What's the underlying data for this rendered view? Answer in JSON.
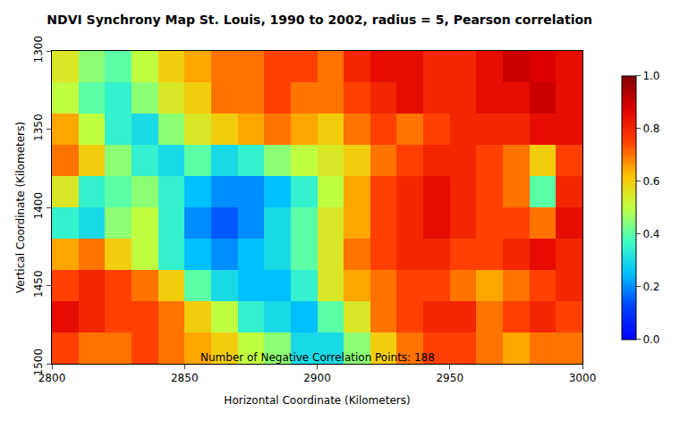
{
  "chart_data": {
    "type": "heatmap",
    "title": "NDVI Synchrony Map St. Louis, 1990 to 2002, radius = 5, Pearson correlation",
    "x_label": "Horizontal Coordinate (Kilometers)",
    "y_label": "Vertical Coordinate (Kilometers)",
    "x": [
      2805,
      2815,
      2825,
      2835,
      2845,
      2855,
      2865,
      2875,
      2885,
      2895,
      2905,
      2915,
      2925,
      2935,
      2945,
      2955,
      2965,
      2975,
      2985,
      2995
    ],
    "y": [
      1310,
      1330,
      1350,
      1370,
      1390,
      1410,
      1430,
      1450,
      1470,
      1490
    ],
    "z": [
      [
        0.55,
        0.45,
        0.4,
        0.5,
        0.6,
        0.65,
        0.7,
        0.7,
        0.75,
        0.75,
        0.7,
        0.8,
        0.85,
        0.85,
        0.8,
        0.8,
        0.85,
        0.9,
        0.88,
        0.85
      ],
      [
        0.5,
        0.4,
        0.35,
        0.45,
        0.55,
        0.6,
        0.7,
        0.7,
        0.75,
        0.7,
        0.7,
        0.75,
        0.8,
        0.85,
        0.8,
        0.8,
        0.85,
        0.85,
        0.9,
        0.85
      ],
      [
        0.65,
        0.5,
        0.35,
        0.3,
        0.45,
        0.55,
        0.6,
        0.65,
        0.7,
        0.65,
        0.6,
        0.7,
        0.75,
        0.7,
        0.75,
        0.8,
        0.8,
        0.8,
        0.85,
        0.85
      ],
      [
        0.7,
        0.6,
        0.45,
        0.35,
        0.3,
        0.4,
        0.3,
        0.35,
        0.45,
        0.5,
        0.55,
        0.6,
        0.7,
        0.75,
        0.8,
        0.8,
        0.75,
        0.7,
        0.6,
        0.75
      ],
      [
        0.55,
        0.35,
        0.4,
        0.45,
        0.35,
        0.25,
        0.2,
        0.2,
        0.25,
        0.35,
        0.5,
        0.65,
        0.75,
        0.8,
        0.85,
        0.8,
        0.75,
        0.7,
        0.4,
        0.8
      ],
      [
        0.35,
        0.3,
        0.45,
        0.5,
        0.35,
        0.2,
        0.15,
        0.2,
        0.3,
        0.4,
        0.55,
        0.65,
        0.75,
        0.8,
        0.85,
        0.8,
        0.75,
        0.75,
        0.7,
        0.85
      ],
      [
        0.65,
        0.7,
        0.6,
        0.5,
        0.35,
        0.25,
        0.2,
        0.25,
        0.3,
        0.4,
        0.55,
        0.7,
        0.75,
        0.8,
        0.8,
        0.75,
        0.75,
        0.8,
        0.85,
        0.8
      ],
      [
        0.75,
        0.8,
        0.75,
        0.7,
        0.6,
        0.4,
        0.3,
        0.25,
        0.25,
        0.35,
        0.55,
        0.65,
        0.7,
        0.75,
        0.75,
        0.7,
        0.65,
        0.7,
        0.75,
        0.8
      ],
      [
        0.85,
        0.8,
        0.75,
        0.75,
        0.7,
        0.6,
        0.5,
        0.35,
        0.3,
        0.25,
        0.4,
        0.55,
        0.7,
        0.75,
        0.8,
        0.8,
        0.7,
        0.75,
        0.8,
        0.75
      ],
      [
        0.75,
        0.7,
        0.7,
        0.75,
        0.7,
        0.65,
        0.6,
        0.5,
        0.45,
        0.3,
        0.3,
        0.45,
        0.6,
        0.7,
        0.75,
        0.75,
        0.7,
        0.65,
        0.7,
        0.7
      ]
    ],
    "xlim": [
      2800,
      3000
    ],
    "ylim": [
      1500,
      1300
    ],
    "xticks": [
      2800,
      2850,
      2900,
      2950,
      3000
    ],
    "yticks": [
      1300,
      1350,
      1400,
      1450,
      1500
    ],
    "colorbar_range": [
      0,
      1
    ],
    "colorbar_ticks": [
      {
        "value": 0,
        "label": "0.0"
      },
      {
        "value": 0.2,
        "label": "0.2"
      },
      {
        "value": 0.4,
        "label": "0.4"
      },
      {
        "value": 0.6,
        "label": "0.6"
      },
      {
        "value": 0.8,
        "label": "0.8"
      },
      {
        "value": 1,
        "label": "1.0"
      }
    ],
    "annotations": [
      {
        "text": "Number of Negative Correlation Points: 188",
        "x": 2900,
        "y": 1496
      }
    ]
  }
}
